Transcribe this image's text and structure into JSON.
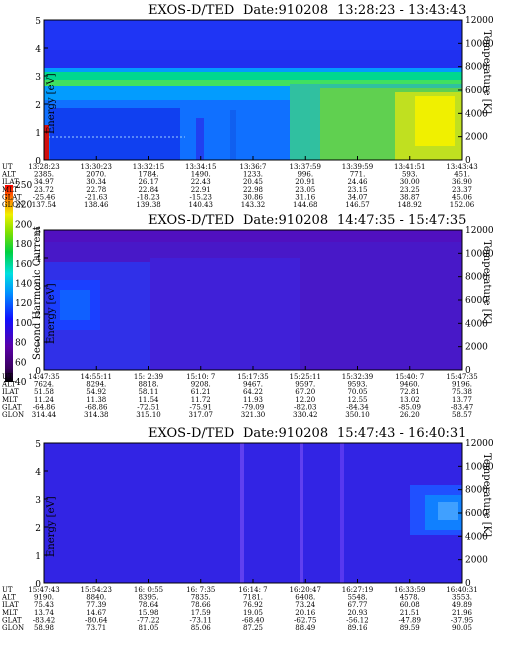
{
  "colorbar": {
    "label": "Second Harmonic Current",
    "ticks": [
      "40",
      "60",
      "80",
      "100",
      "120",
      "140",
      "160",
      "180",
      "200",
      "220",
      "250"
    ]
  },
  "chart_data": [
    {
      "type": "heatmap",
      "title": "EXOS-D/TED",
      "date_label": "Date:910208",
      "time_range": "13:28:23 - 13:43:43",
      "ylabel": "Energy [eV]",
      "y2label": "Temperature [K]",
      "ylim": [
        0,
        5
      ],
      "y_ticks": [
        "0",
        "1",
        "2",
        "3",
        "4",
        "5"
      ],
      "y2_ticks": [
        "0",
        "2000",
        "4000",
        "6000",
        "8000",
        "10000",
        "12000"
      ],
      "row_labels": [
        "UT",
        "ALT",
        "ILAT",
        "MLT",
        "GLAT",
        "GLON"
      ],
      "columns": [
        [
          "13:28:23",
          "2385.",
          "34.97",
          "23.72",
          "-25.46",
          "137.54"
        ],
        [
          "13:30:23",
          "2070.",
          "30.34",
          "22.78",
          "-21.63",
          "138.46"
        ],
        [
          "13:32:15",
          "1784.",
          "26.17",
          "22.84",
          "-18.23",
          "139.38"
        ],
        [
          "13:34:15",
          "1490.",
          "22.43",
          "22.91",
          "-15.23",
          "140.43"
        ],
        [
          "13:36:7",
          "1233.",
          "20.45",
          "22.98",
          "30.86",
          "143.32"
        ],
        [
          "13:37:59",
          "996.",
          "20.91",
          "23.05",
          "31.16",
          "144.68"
        ],
        [
          "13:39:59",
          "771.",
          "24.46",
          "23.15",
          "34.07",
          "146.57"
        ],
        [
          "13:41:51",
          "593.",
          "30.00",
          "23.25",
          "38.87",
          "148.92"
        ],
        [
          "13:43:43",
          "451.",
          "36.90",
          "23.37",
          "45.06",
          "152.06"
        ]
      ]
    },
    {
      "type": "heatmap",
      "title": "EXOS-D/TED",
      "date_label": "Date:910208",
      "time_range": "14:47:35 - 15:47:35",
      "ylabel": "Energy [eV]",
      "y2label": "Temperature [K]",
      "ylim": [
        0,
        5
      ],
      "y_ticks": [
        "0",
        "1",
        "2",
        "3",
        "4",
        "5"
      ],
      "y2_ticks": [
        "0",
        "2000",
        "4000",
        "6000",
        "8000",
        "10000",
        "12000"
      ],
      "row_labels": [
        "UT",
        "ALT",
        "ILAT",
        "MLT",
        "GLAT",
        "GLON"
      ],
      "columns": [
        [
          "14:47:35",
          "7624.",
          "51.58",
          "11.24",
          "-64.86",
          "314.44"
        ],
        [
          "14:55:11",
          "8294.",
          "54.92",
          "11.38",
          "-68.86",
          "314.38"
        ],
        [
          "15: 2:39",
          "8818.",
          "58.11",
          "11.54",
          "-72.51",
          "315.10"
        ],
        [
          "15:10: 7",
          "9208.",
          "61.21",
          "11.72",
          "-75.91",
          "317.07"
        ],
        [
          "15:17:35",
          "9467.",
          "64.22",
          "11.93",
          "-79.09",
          "321.30"
        ],
        [
          "15:25:11",
          "9597.",
          "67.20",
          "12.20",
          "-82.03",
          "330.42"
        ],
        [
          "15:32:39",
          "9593.",
          "70.05",
          "12.55",
          "-84.34",
          "350.10"
        ],
        [
          "15:40: 7",
          "9460.",
          "72.81",
          "13.02",
          "-85.09",
          "26.20"
        ],
        [
          "15:47:35",
          "9196.",
          "75.38",
          "13.77",
          "-83.47",
          "58.57"
        ]
      ]
    },
    {
      "type": "heatmap",
      "title": "EXOS-D/TED",
      "date_label": "Date:910208",
      "time_range": "15:47:43 - 16:40:31",
      "ylabel": "Energy [eV]",
      "y2label": "Temperature [K]",
      "ylim": [
        0,
        5
      ],
      "y_ticks": [
        "0",
        "1",
        "2",
        "3",
        "4",
        "5"
      ],
      "y2_ticks": [
        "0",
        "2000",
        "4000",
        "6000",
        "8000",
        "10000",
        "12000"
      ],
      "row_labels": [
        "UT",
        "ALT",
        "ILAT",
        "MLT",
        "GLAT",
        "GLON"
      ],
      "columns": [
        [
          "15:47:43",
          "9190.",
          "75.43",
          "13.74",
          "-83.42",
          "58.98"
        ],
        [
          "15:54:23",
          "8840.",
          "77.39",
          "14.67",
          "-80.64",
          "73.71"
        ],
        [
          "16: 0:55",
          "8395.",
          "78.64",
          "15.98",
          "-77.22",
          "81.05"
        ],
        [
          "16: 7:35",
          "7835.",
          "78.66",
          "17.59",
          "-73.11",
          "85.06"
        ],
        [
          "16:14: 7",
          "7181.",
          "76.92",
          "19.05",
          "-68.40",
          "87.25"
        ],
        [
          "16:20:47",
          "6408.",
          "73.24",
          "20.16",
          "-62.75",
          "88.49"
        ],
        [
          "16:27:19",
          "5548.",
          "67.77",
          "20.93",
          "-56.12",
          "89.16"
        ],
        [
          "16:33:59",
          "4578.",
          "60.08",
          "21.51",
          "-47.89",
          "89.59"
        ],
        [
          "16:40:31",
          "3553.",
          "49.89",
          "21.96",
          "-37.95",
          "90.05"
        ]
      ]
    }
  ]
}
